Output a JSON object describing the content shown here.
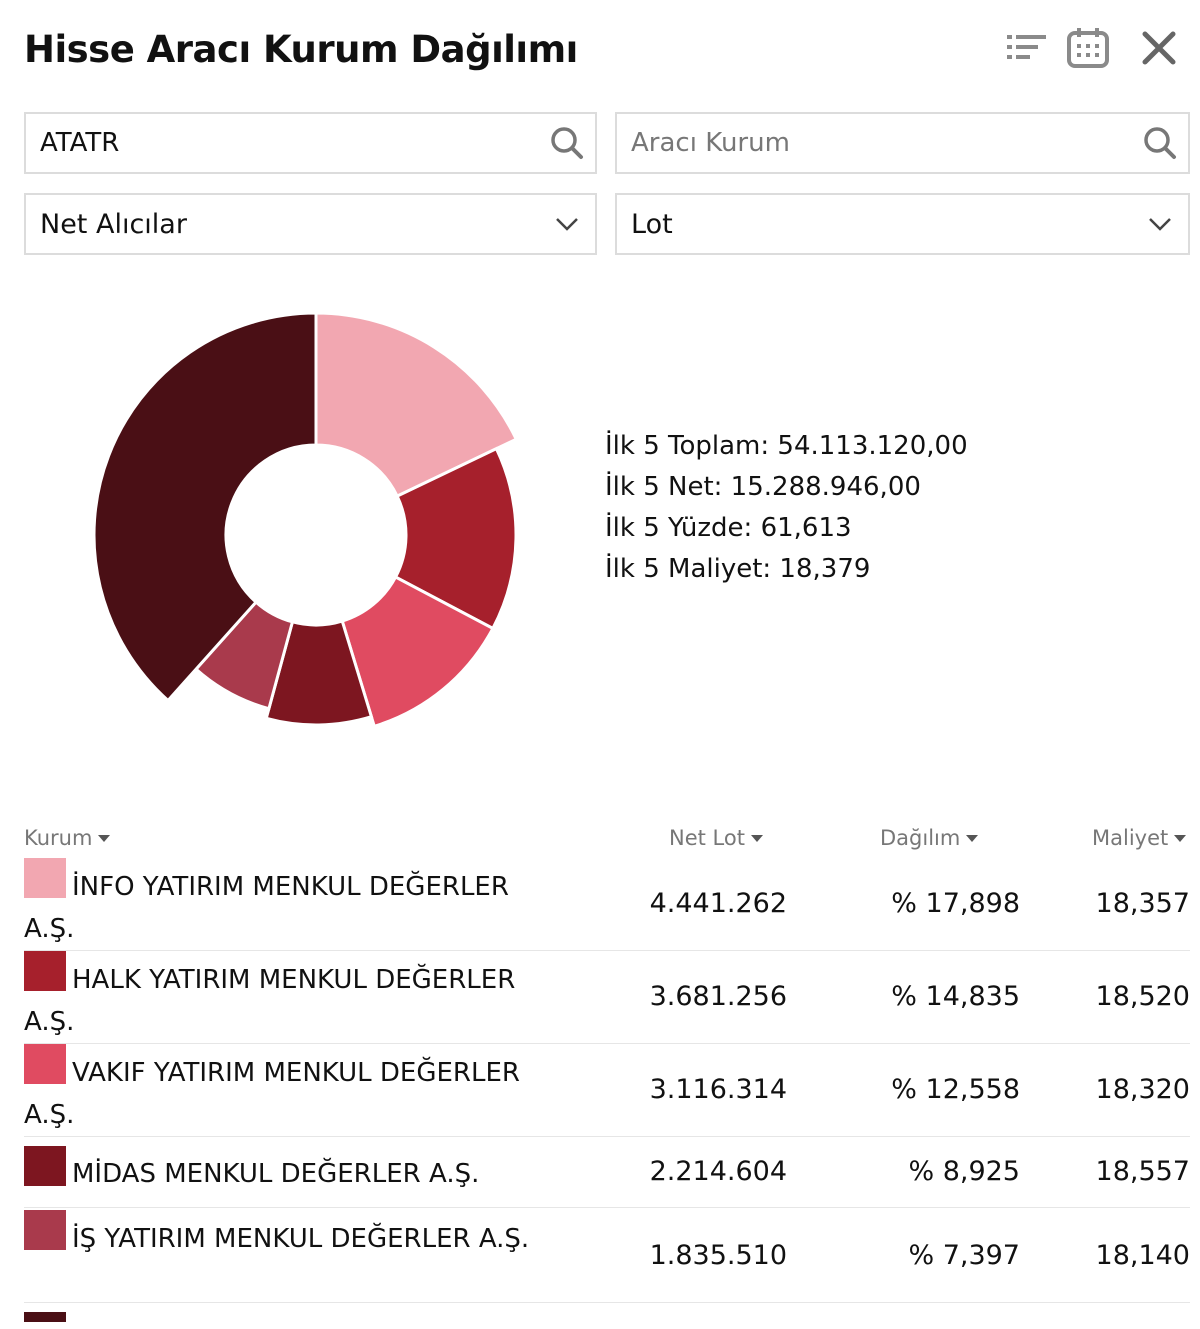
{
  "header": {
    "title": "Hisse Aracı Kurum Dağılımı",
    "icons": [
      "sort-icon",
      "calendar-icon",
      "close-icon"
    ]
  },
  "filters": {
    "symbol_value": "ATATR",
    "broker_placeholder": "Aracı Kurum",
    "side_selected": "Net Alıcılar",
    "unit_selected": "Lot"
  },
  "colors": {
    "info": "#f2a7b1",
    "halk": "#a6202c",
    "vakif": "#e04b61",
    "midas": "#7d1620",
    "is": "#a93a4c",
    "other": "#4a0f15"
  },
  "summary": {
    "total": "İlk 5 Toplam: 54.113.120,00",
    "net": "İlk 5 Net: 15.288.946,00",
    "pct": "İlk 5 Yüzde: 61,613",
    "cost": "İlk 5 Maliyet: 18,379"
  },
  "table": {
    "headers": [
      "Kurum",
      "Net Lot",
      "Dağılım",
      "Maliyet"
    ],
    "rows": [
      {
        "name": "İNFO YATIRIM MENKUL DEĞERLER A.Ş.",
        "lot": "4.441.262",
        "pct": "% 17,898",
        "cost": "18,357"
      },
      {
        "name": "HALK YATIRIM MENKUL DEĞERLER A.Ş.",
        "lot": "3.681.256",
        "pct": "% 14,835",
        "cost": "18,520"
      },
      {
        "name": "VAKIF YATIRIM MENKUL DEĞERLER A.Ş.",
        "lot": "3.116.314",
        "pct": "% 12,558",
        "cost": "18,320"
      },
      {
        "name": "MİDAS MENKUL DEĞERLER A.Ş.",
        "lot": "2.214.604",
        "pct": "% 8,925",
        "cost": "18,557"
      },
      {
        "name": "İŞ YATIRIM MENKUL DEĞERLER A.Ş.",
        "lot": "1.835.510",
        "pct": "% 7,397",
        "cost": "18,140"
      }
    ]
  },
  "chart_data": {
    "type": "pie",
    "donut": true,
    "categories": [
      "İNFO YATIRIM MENKUL DEĞERLER A.Ş.",
      "HALK YATIRIM MENKUL DEĞERLER A.Ş.",
      "VAKIF YATIRIM MENKUL DEĞERLER A.Ş.",
      "MİDAS MENKUL DEĞERLER A.Ş.",
      "İŞ YATIRIM MENKUL DEĞERLER A.Ş.",
      ""
    ],
    "values": [
      17.898,
      14.835,
      12.558,
      8.925,
      7.397,
      38.387
    ],
    "colors": [
      "#f2a7b1",
      "#a6202c",
      "#e04b61",
      "#7d1620",
      "#a93a4c",
      "#4a0f15"
    ]
  }
}
